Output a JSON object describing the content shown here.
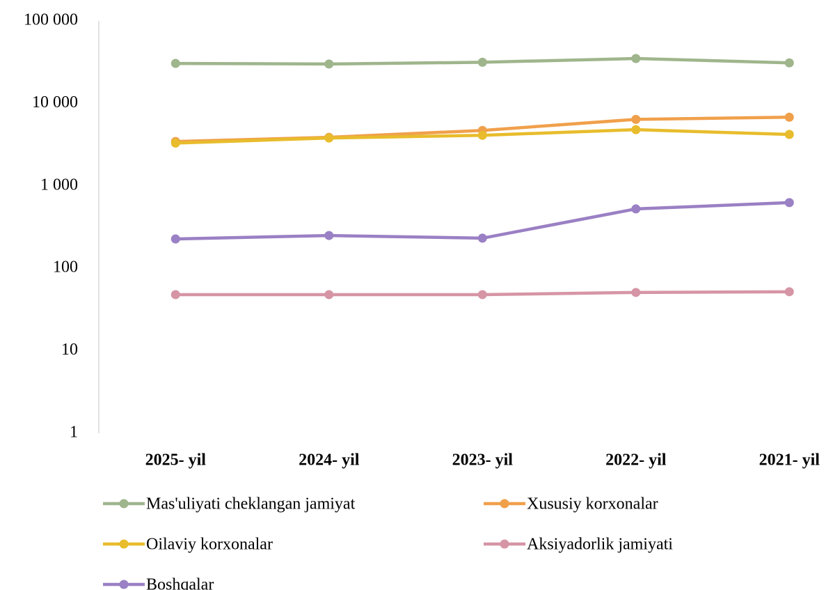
{
  "chart_data": {
    "type": "line",
    "log_scale": true,
    "categories": [
      "2025- yil",
      "2024- yil",
      "2023- yil",
      "2022- yil",
      "2021- yil"
    ],
    "series": [
      {
        "name": "Mas'uliyati cheklangan jamiyat",
        "color": "#9fb58c",
        "values": [
          30500,
          30000,
          31500,
          35000,
          31000
        ]
      },
      {
        "name": "Xususiy korxonalar",
        "color": "#f0a04b",
        "values": [
          3450,
          3880,
          4700,
          6400,
          6800
        ]
      },
      {
        "name": "Oilaviy korxonalar",
        "color": "#e8bc2c",
        "values": [
          3300,
          3800,
          4100,
          4800,
          4200
        ]
      },
      {
        "name": "Aksiyadorlik jamiyati",
        "color": "#d695a5",
        "values": [
          48,
          48,
          48,
          51,
          52
        ]
      },
      {
        "name": "Boshqalar",
        "color": "#9a80c4",
        "values": [
          227,
          250,
          232,
          525,
          626
        ]
      }
    ],
    "ylim": [
      1,
      100000
    ],
    "yticks": [
      1,
      10,
      100,
      {
        "value": 1000,
        "label": "1 000"
      },
      {
        "value": 10000,
        "label": "10 000"
      },
      {
        "value": 100000,
        "label": "100 000"
      }
    ],
    "legend": "bottom"
  }
}
